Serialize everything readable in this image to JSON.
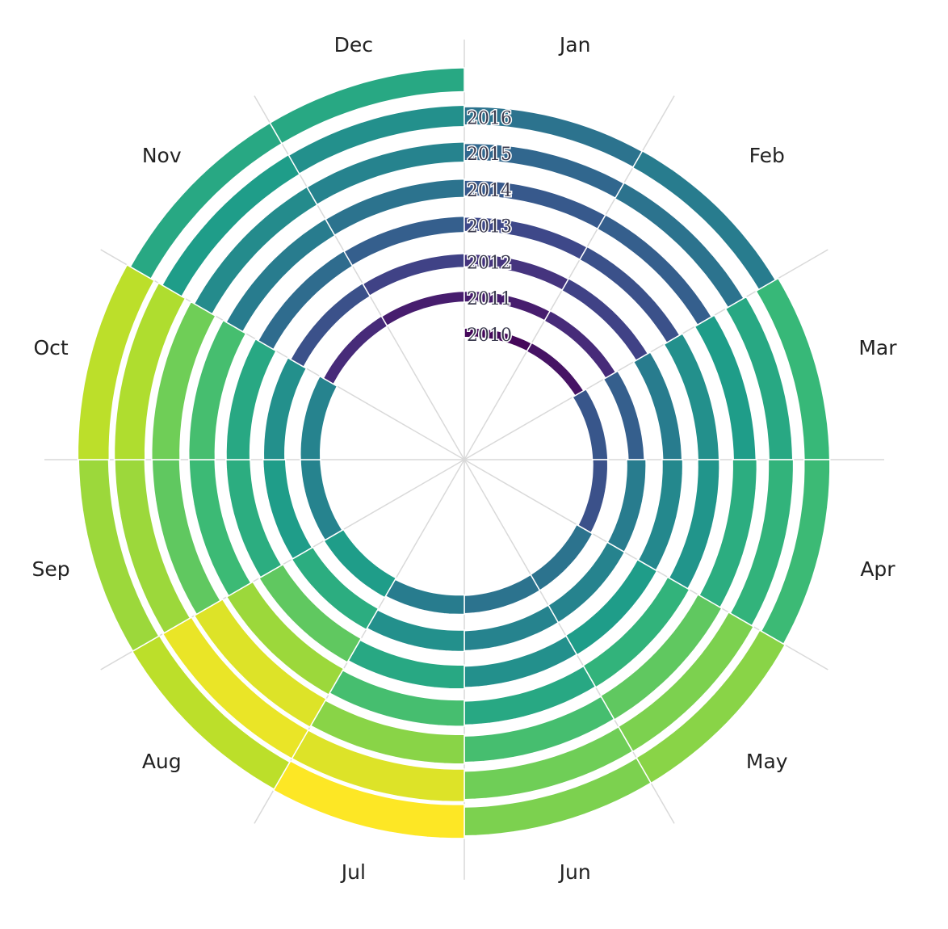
{
  "chart_data": {
    "type": "heatmap",
    "layout": "spiral",
    "color_scale": "viridis",
    "colors": [
      "#440154",
      "#482878",
      "#3e4989",
      "#31688e",
      "#26828e",
      "#1f9e89",
      "#35b779",
      "#6ece58",
      "#b5de2b",
      "#fde725"
    ],
    "months": [
      "Jan",
      "Feb",
      "Mar",
      "Apr",
      "May",
      "Jun",
      "Jul",
      "Aug",
      "Sep",
      "Oct",
      "Nov",
      "Dec"
    ],
    "years": [
      "2010",
      "2011",
      "2012",
      "2013",
      "2014",
      "2015",
      "2016"
    ],
    "value_range": [
      0,
      1
    ],
    "values": [
      [
        0.02,
        0.05,
        0.27,
        0.25,
        0.38,
        0.38,
        0.42,
        0.55,
        0.45,
        0.45,
        0.12,
        0.08
      ],
      [
        0.08,
        0.12,
        0.3,
        0.42,
        0.45,
        0.45,
        0.5,
        0.62,
        0.55,
        0.5,
        0.25,
        0.2
      ],
      [
        0.15,
        0.2,
        0.42,
        0.47,
        0.55,
        0.5,
        0.6,
        0.75,
        0.62,
        0.6,
        0.35,
        0.3
      ],
      [
        0.22,
        0.25,
        0.5,
        0.52,
        0.65,
        0.6,
        0.7,
        0.85,
        0.68,
        0.7,
        0.42,
        0.38
      ],
      [
        0.28,
        0.3,
        0.55,
        0.62,
        0.75,
        0.7,
        0.82,
        0.95,
        0.75,
        0.78,
        0.48,
        0.45
      ],
      [
        0.33,
        0.38,
        0.6,
        0.65,
        0.8,
        0.78,
        0.95,
        0.97,
        0.85,
        0.88,
        0.55,
        0.5
      ],
      [
        0.38,
        0.42,
        0.67,
        0.68,
        0.82,
        0.8,
        1.0,
        0.9,
        0.85,
        0.9,
        0.6,
        0.6
      ]
    ],
    "grid": true,
    "legend": "none"
  }
}
